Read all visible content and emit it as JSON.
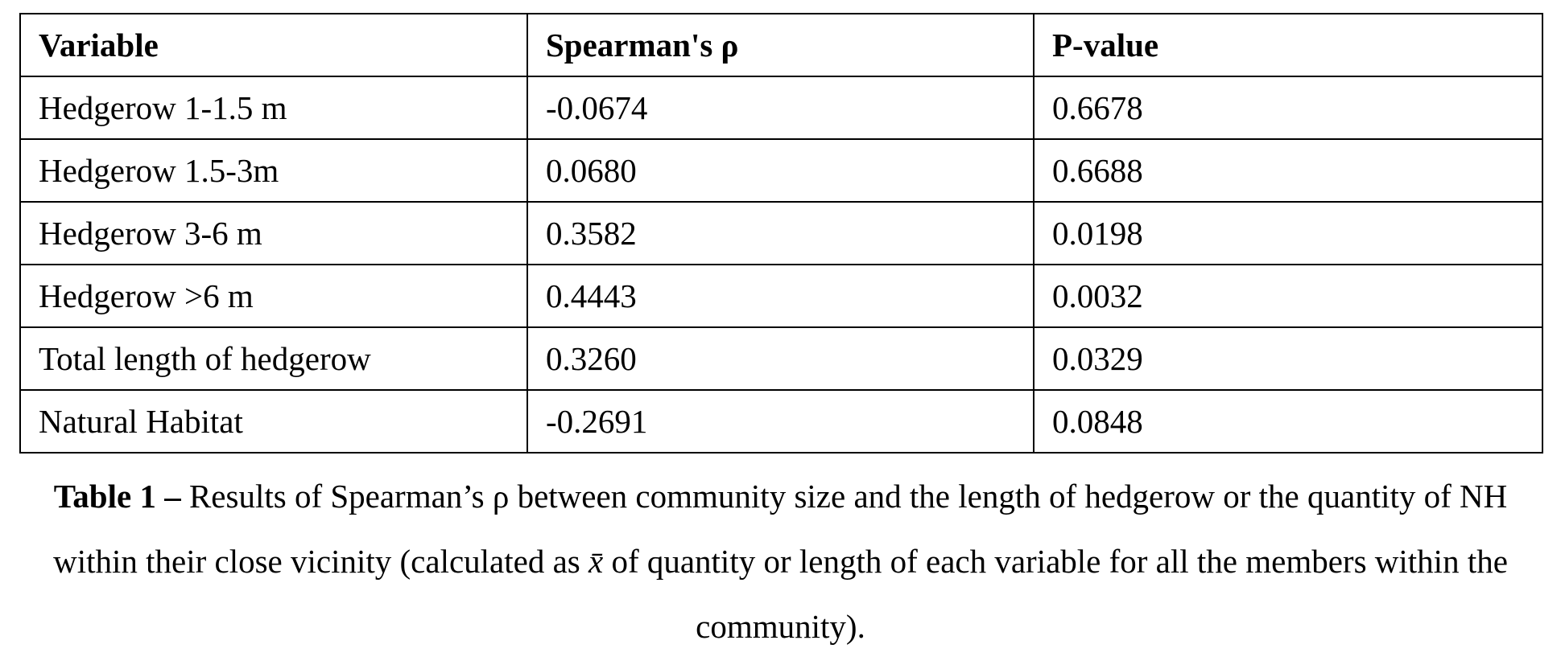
{
  "table": {
    "headers": [
      "Variable",
      "Spearman's ρ",
      "P-value"
    ],
    "rows": [
      [
        "Hedgerow 1-1.5 m",
        "-0.0674",
        "0.6678"
      ],
      [
        "Hedgerow 1.5-3m",
        "0.0680",
        "0.6688"
      ],
      [
        "Hedgerow 3-6 m",
        "0.3582",
        "0.0198"
      ],
      [
        "Hedgerow >6 m",
        "0.4443",
        "0.0032"
      ],
      [
        "Total length of hedgerow",
        "0.3260",
        "0.0329"
      ],
      [
        "Natural Habitat",
        "-0.2691",
        "0.0848"
      ]
    ]
  },
  "caption": {
    "label": "Table 1 –",
    "text_before": "Results of Spearman’s ρ between community size and the length of hedgerow or the quantity of NH within their close vicinity (calculated as ",
    "symbol": "x̄",
    "text_after": " of quantity or length of each variable for all the members within the community)."
  }
}
